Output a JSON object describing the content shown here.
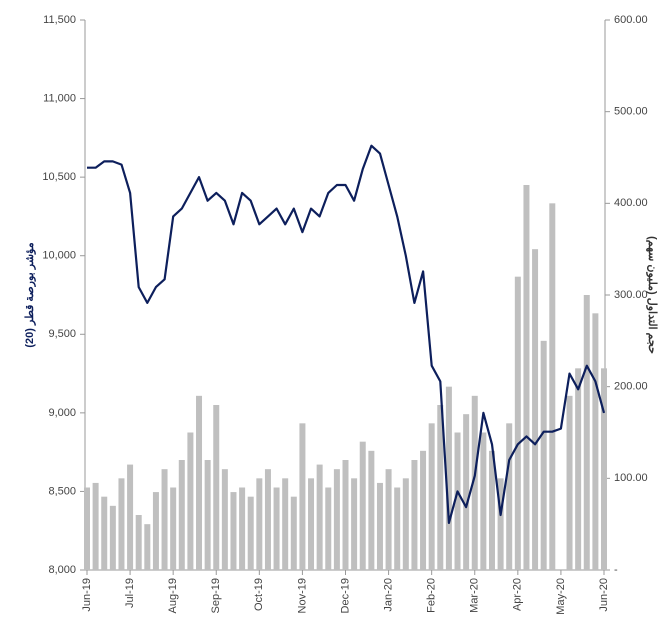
{
  "chart_data": {
    "type": "bar-line",
    "categories": [
      "Jun-19",
      null,
      null,
      null,
      null,
      "Jul-19",
      null,
      null,
      null,
      null,
      "Aug-19",
      null,
      null,
      null,
      null,
      "Sep-19",
      null,
      null,
      null,
      null,
      "Oct-19",
      null,
      null,
      null,
      null,
      "Nov-19",
      null,
      null,
      null,
      null,
      "Dec-19",
      null,
      null,
      null,
      null,
      "Jan-20",
      null,
      null,
      null,
      null,
      "Feb-20",
      null,
      null,
      null,
      null,
      "Mar-20",
      null,
      null,
      null,
      null,
      "Apr-20",
      null,
      null,
      null,
      null,
      "May-20",
      null,
      null,
      null,
      null,
      "Jun-20"
    ],
    "series": [
      {
        "name": "حجم التداول (مليون سهم)",
        "type": "bar",
        "axis": "y2",
        "color": "#bfbfbf",
        "values": [
          90,
          95,
          80,
          70,
          100,
          115,
          60,
          50,
          85,
          110,
          90,
          120,
          150,
          190,
          120,
          180,
          110,
          85,
          90,
          80,
          100,
          110,
          90,
          100,
          80,
          160,
          100,
          115,
          90,
          110,
          120,
          100,
          140,
          130,
          95,
          110,
          90,
          100,
          120,
          130,
          160,
          180,
          200,
          150,
          170,
          190,
          150,
          130,
          100,
          160,
          320,
          420,
          350,
          250,
          400,
          null,
          190,
          220,
          300,
          280,
          220
        ]
      },
      {
        "name": "مؤشر بورصة قطر (20)",
        "type": "line",
        "axis": "y",
        "color": "#0d1f5c",
        "values": [
          10560,
          10560,
          10600,
          10600,
          10580,
          10400,
          9800,
          9700,
          9800,
          9850,
          10250,
          10300,
          10400,
          10500,
          10350,
          10400,
          10350,
          10200,
          10400,
          10350,
          10200,
          10250,
          10300,
          10200,
          10300,
          10150,
          10300,
          10250,
          10400,
          10450,
          10450,
          10350,
          10550,
          10700,
          10650,
          10450,
          10250,
          10000,
          9700,
          9900,
          9300,
          9200,
          8300,
          8500,
          8400,
          8600,
          9000,
          8800,
          8350,
          8700,
          8800,
          8850,
          8800,
          8880,
          8880,
          8900,
          9250,
          9150,
          9300,
          9200,
          9000
        ]
      }
    ],
    "ylabel": "مؤشر بورصة قطر (20)",
    "y2label": "حجم التداول (مليون سهم)",
    "ylim": [
      8000,
      11500
    ],
    "yticks": [
      {
        "value": 8000,
        "label": "8,000"
      },
      {
        "value": 8500,
        "label": "8,500"
      },
      {
        "value": 9000,
        "label": "9,000"
      },
      {
        "value": 9500,
        "label": "9,500"
      },
      {
        "value": 10000,
        "label": "10,000"
      },
      {
        "value": 10500,
        "label": "10,500"
      },
      {
        "value": 11000,
        "label": "11,000"
      },
      {
        "value": 11500,
        "label": "11,500"
      }
    ],
    "y2lim": [
      0,
      600
    ],
    "y2ticks": [
      {
        "value": 0,
        "label": "-"
      },
      {
        "value": 100,
        "label": "100.00"
      },
      {
        "value": 200,
        "label": "200.00"
      },
      {
        "value": 300,
        "label": "300.00"
      },
      {
        "value": 400,
        "label": "400.00"
      },
      {
        "value": 500,
        "label": "500.00"
      },
      {
        "value": 600,
        "label": "600.00"
      }
    ]
  }
}
